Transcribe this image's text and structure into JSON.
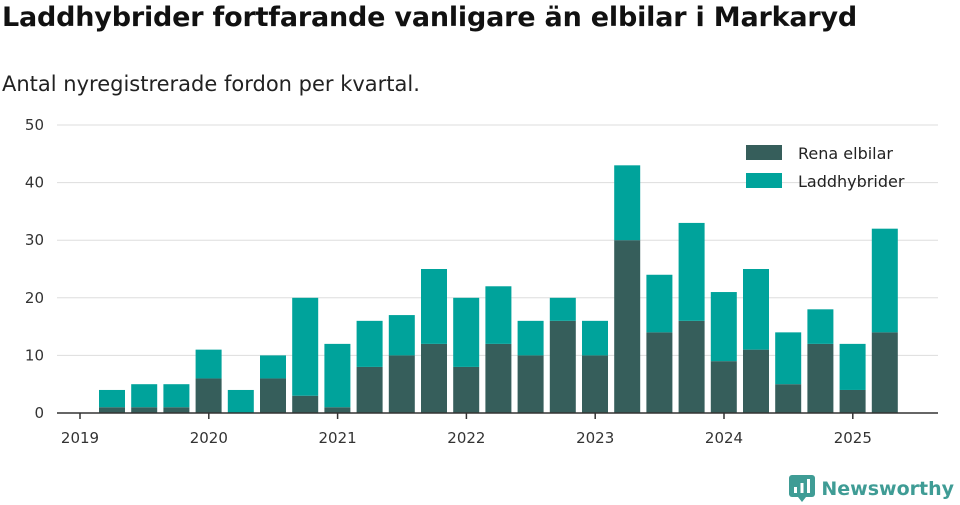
{
  "title": "Laddhybrider fortfarande vanligare än elbilar i Markaryd",
  "subtitle": "Antal nyregistrerade fordon per kvartal.",
  "logo_text": "Newsworthy",
  "chart_data": {
    "type": "bar",
    "stacked": true,
    "x": [
      "2019-Q2",
      "2019-Q3",
      "2019-Q4",
      "2020-Q1",
      "2020-Q2",
      "2020-Q3",
      "2020-Q4",
      "2021-Q1",
      "2021-Q2",
      "2021-Q3",
      "2021-Q4",
      "2022-Q1",
      "2022-Q2",
      "2022-Q3",
      "2022-Q4",
      "2023-Q1",
      "2023-Q2",
      "2023-Q3",
      "2023-Q4",
      "2024-Q1",
      "2024-Q2",
      "2024-Q3",
      "2024-Q4",
      "2025-Q1",
      "2025-Q2"
    ],
    "series": [
      {
        "name": "Rena elbilar",
        "color": "#365e5b",
        "values": [
          1,
          1,
          1,
          6,
          0,
          6,
          3,
          1,
          8,
          10,
          12,
          8,
          12,
          10,
          16,
          10,
          30,
          14,
          16,
          9,
          11,
          5,
          12,
          4,
          14
        ]
      },
      {
        "name": "Laddhybrider",
        "color": "#00a39b",
        "values": [
          3,
          4,
          4,
          5,
          4,
          4,
          17,
          11,
          8,
          7,
          13,
          12,
          10,
          6,
          4,
          6,
          13,
          10,
          17,
          12,
          14,
          9,
          6,
          8,
          18
        ]
      }
    ],
    "x_ticks": [
      "2019",
      "2020",
      "2021",
      "2022",
      "2023",
      "2024",
      "2025"
    ],
    "y_ticks": [
      0,
      10,
      20,
      30,
      40,
      50
    ],
    "ylim": [
      0,
      50
    ],
    "grid": true,
    "legend": "top-right"
  },
  "colors": {
    "grid": "#dddddd",
    "axis": "#333333",
    "logo": "#3f9c95"
  }
}
